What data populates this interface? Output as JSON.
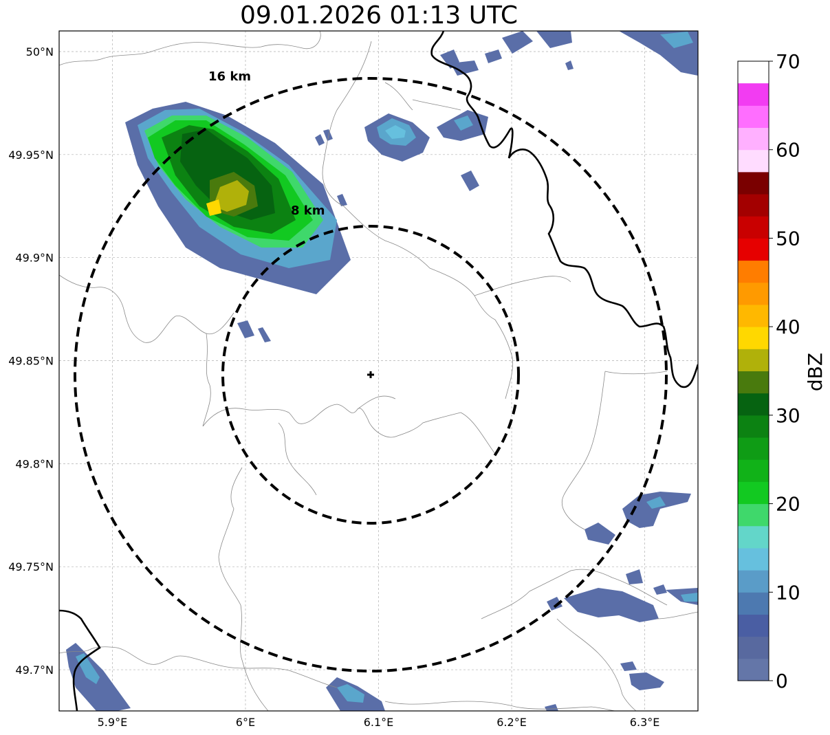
{
  "title": "09.01.2026 01:13 UTC",
  "map": {
    "x_ticks": [
      {
        "label": "5.9°E",
        "lon": 5.9
      },
      {
        "label": "6°E",
        "lon": 6.0
      },
      {
        "label": "6.1°E",
        "lon": 6.1
      },
      {
        "label": "6.2°E",
        "lon": 6.2
      },
      {
        "label": "6.3°E",
        "lon": 6.3
      }
    ],
    "y_ticks": [
      {
        "label": "50°N",
        "lat": 50.0
      },
      {
        "label": "49.95°N",
        "lat": 49.95
      },
      {
        "label": "49.9°N",
        "lat": 49.9
      },
      {
        "label": "49.85°N",
        "lat": 49.85
      },
      {
        "label": "49.8°N",
        "lat": 49.8
      },
      {
        "label": "49.75°N",
        "lat": 49.75
      },
      {
        "label": "49.7°N",
        "lat": 49.7
      }
    ],
    "lon_range": [
      5.86,
      6.34
    ],
    "lat_range": [
      49.68,
      50.01
    ],
    "radar_site": {
      "lon": 6.0945,
      "lat": 49.843
    },
    "range_rings": [
      {
        "label": "8 km",
        "radius_km": 8
      },
      {
        "label": "16 km",
        "radius_km": 16
      }
    ],
    "gridlines": true
  },
  "colorbar": {
    "label": "dBZ",
    "tick_labels": [
      "0",
      "10",
      "20",
      "30",
      "40",
      "50",
      "60",
      "70"
    ],
    "min": 0,
    "max": 70,
    "step": 2.5,
    "colors": [
      "#6476a8",
      "#58699f",
      "#4a5ea3",
      "#4d79b0",
      "#5a9cc8",
      "#66c0de",
      "#63d6c9",
      "#3fd86b",
      "#12c921",
      "#11b218",
      "#0f9c15",
      "#0c8212",
      "#066311",
      "#497a0d",
      "#b0b10a",
      "#ffd800",
      "#ffb800",
      "#ff9a00",
      "#ff7d00",
      "#e60000",
      "#c90000",
      "#a30000",
      "#7a0000",
      "#ffdcff",
      "#ffb0ff",
      "#ff6eff",
      "#f23cf2"
    ]
  }
}
